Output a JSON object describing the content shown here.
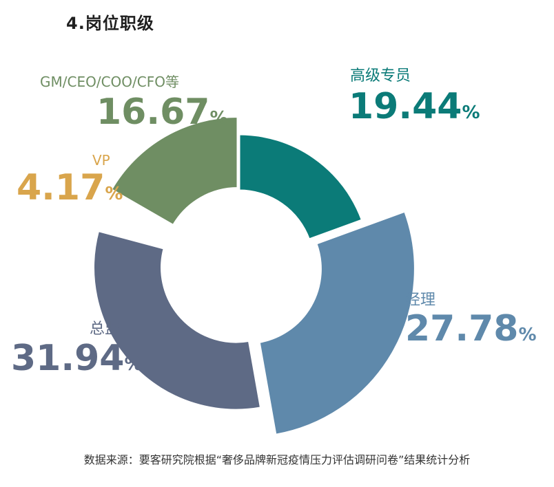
{
  "title": "4.岗位职级",
  "source": "数据来源：要客研究院根据“奢侈品牌新冠疫情压力评估调研问卷”结果统计分析",
  "chart_data": {
    "type": "pie",
    "variant": "donut",
    "slices": [
      {
        "label": "高级专员",
        "value": 19.44,
        "value_text": "19.44",
        "unit": "%",
        "color": "#0b7b78"
      },
      {
        "label": "经理",
        "value": 27.78,
        "value_text": "27.78",
        "unit": "%",
        "color": "#5f89ab"
      },
      {
        "label": "总监",
        "value": 31.94,
        "value_text": "31.94",
        "unit": "%",
        "color": "#5e6a85"
      },
      {
        "label": "VP",
        "value": 4.17,
        "value_text": "4.17",
        "unit": "%",
        "color": "#d9a54c"
      },
      {
        "label": "GM/CEO/COO/CFO等",
        "value": 16.67,
        "value_text": "16.67",
        "unit": "%",
        "color": "#6f8e63"
      }
    ]
  }
}
